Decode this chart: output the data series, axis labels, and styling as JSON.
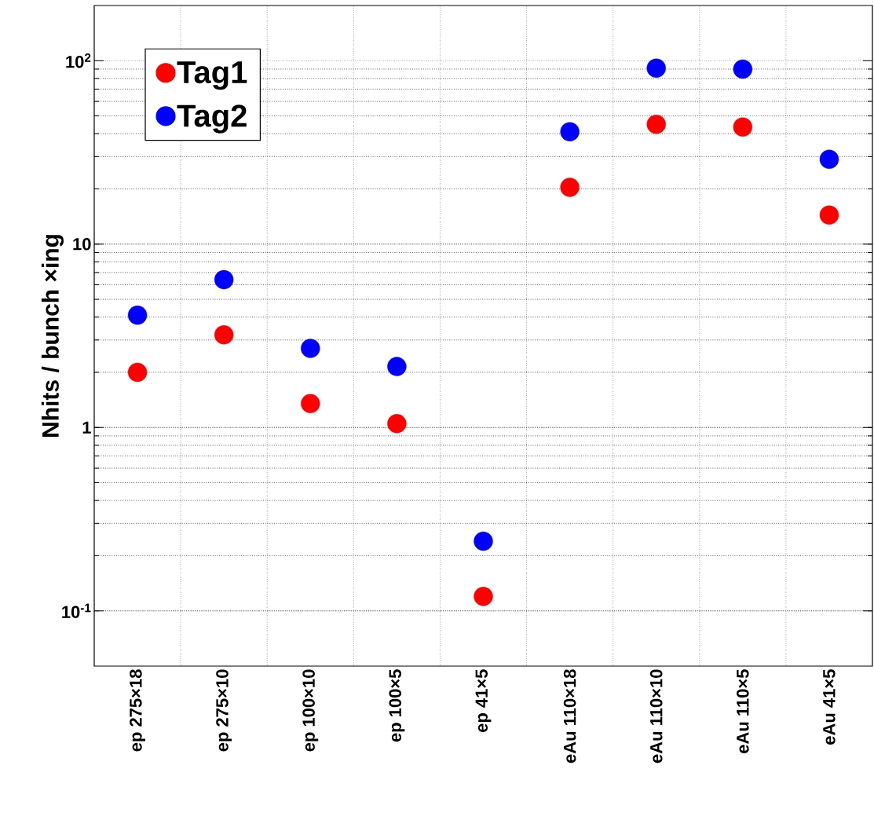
{
  "chart_data": {
    "type": "scatter",
    "ylabel": "Nhits / bunch ×ing",
    "categories": [
      "ep 275×18",
      "ep 275×10",
      "ep 100×10",
      "ep 100×5",
      "ep 41×5",
      "eAu 110×18",
      "eAu 110×10",
      "eAu 110×5",
      "eAu 41×5"
    ],
    "series": [
      {
        "name": "Tag1",
        "color": "#ff0000",
        "values": [
          2.0,
          3.2,
          1.35,
          1.05,
          0.12,
          20.4,
          45,
          43.5,
          14.4
        ]
      },
      {
        "name": "Tag2",
        "color": "#0000ff",
        "values": [
          4.1,
          6.4,
          2.7,
          2.15,
          0.24,
          41,
          91,
          90,
          29
        ]
      }
    ],
    "log": "y",
    "ylim": [
      0.05,
      200
    ],
    "yticks": [
      {
        "value": 0.1,
        "label": "10$^{-1}$"
      },
      1,
      10,
      {
        "value": 100,
        "label": "10$^{2}$"
      }
    ],
    "grid": true,
    "legend": "top left",
    "marker": "circle"
  }
}
